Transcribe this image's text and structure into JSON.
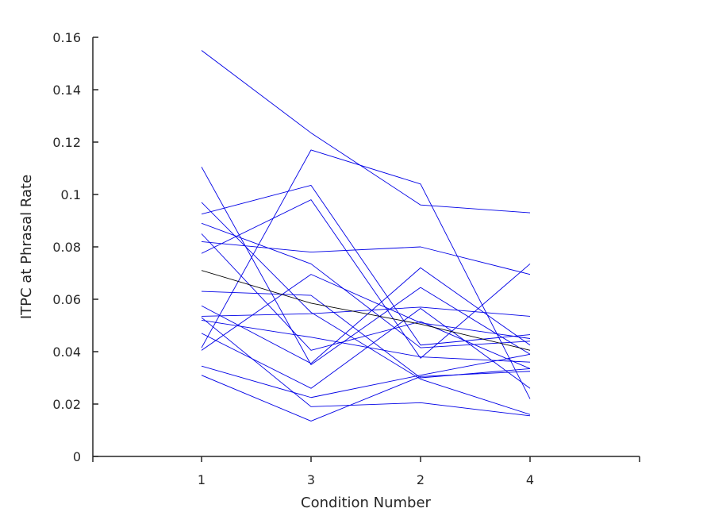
{
  "chart_data": {
    "type": "line",
    "title": "",
    "xlabel": "Condition Number",
    "ylabel": "ITPC at Phrasal Rate",
    "categories": [
      "1",
      "3",
      "2",
      "4"
    ],
    "ylim": [
      0,
      0.16
    ],
    "yticks": [
      0,
      0.02,
      0.04,
      0.06,
      0.08,
      0.1,
      0.12,
      0.14,
      0.16
    ],
    "ytick_labels": [
      "0",
      "0.02",
      "0.04",
      "0.06",
      "0.08",
      "0.1",
      "0.12",
      "0.14",
      "0.16"
    ],
    "grid": false,
    "legend": "none",
    "colors": {
      "series": "#0000e6",
      "mean": "#000000",
      "axis": "#262626"
    },
    "series": [
      {
        "values": [
          0.155,
          0.1235,
          0.096,
          0.093
        ]
      },
      {
        "values": [
          0.1105,
          0.035,
          0.0645,
          0.039
        ]
      },
      {
        "values": [
          0.097,
          0.055,
          0.0295,
          0.016
        ]
      },
      {
        "values": [
          0.0925,
          0.1035,
          0.0425,
          0.0465
        ]
      },
      {
        "values": [
          0.089,
          0.0735,
          0.0415,
          0.044
        ]
      },
      {
        "values": [
          0.085,
          0.0405,
          0.0515,
          0.0335
        ]
      },
      {
        "values": [
          0.082,
          0.078,
          0.08,
          0.0695
        ]
      },
      {
        "values": [
          0.0775,
          0.098,
          0.0375,
          0.0735
        ]
      },
      {
        "values": [
          0.063,
          0.0615,
          0.03,
          0.0335
        ]
      },
      {
        "values": [
          0.0575,
          0.0355,
          0.072,
          0.0425
        ]
      },
      {
        "values": [
          0.0535,
          0.0545,
          0.057,
          0.0535
        ]
      },
      {
        "values": [
          0.052,
          0.0455,
          0.038,
          0.036
        ]
      },
      {
        "values": [
          0.0415,
          0.117,
          0.104,
          0.022
        ]
      },
      {
        "values": [
          0.0405,
          0.0695,
          0.051,
          0.045
        ]
      },
      {
        "values": [
          0.0345,
          0.0225,
          0.031,
          0.039
        ]
      },
      {
        "values": [
          0.031,
          0.0135,
          0.0305,
          0.0325
        ]
      },
      {
        "values": [
          0.053,
          0.019,
          0.0205,
          0.0155
        ]
      },
      {
        "values": [
          0.047,
          0.026,
          0.0565,
          0.026
        ]
      },
      {
        "values": [
          0.071,
          0.0585,
          0.0505,
          0.0405
        ],
        "role": "mean"
      }
    ]
  }
}
